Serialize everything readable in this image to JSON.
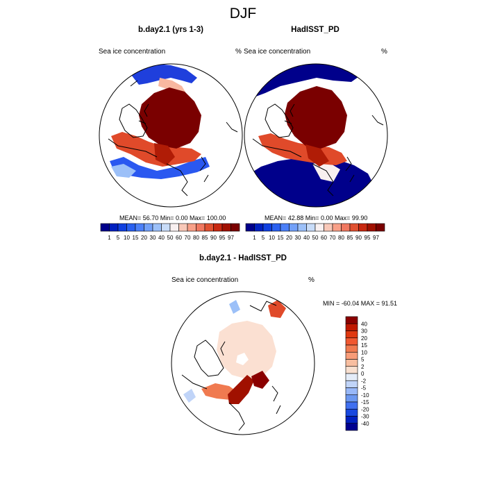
{
  "figure": {
    "title": "DJF",
    "left_panel": {
      "title": "b.day2.1 (yrs 1-3)",
      "left_label": "Sea ice concentration",
      "right_label": "%",
      "stats": "MEAN=  56.70  Min=   0.00  Max= 100.00"
    },
    "right_panel": {
      "title": "HadISST_PD",
      "left_label": "Sea ice concentration",
      "right_label": "%",
      "stats": "MEAN=  42.88  Min=   0.00  Max=  99.90"
    },
    "diff_panel": {
      "title": "b.day2.1 - HadISST_PD",
      "left_label": "Sea ice concentration",
      "right_label": "%",
      "stats": "MIN = -60.04 MAX =  91.51"
    }
  },
  "chart_data": [
    {
      "type": "heatmap",
      "projection": "north-polar-stereographic",
      "title": "b.day2.1 (yrs 1-3)",
      "variable": "Sea ice concentration",
      "units": "%",
      "mean": 56.7,
      "min": 0.0,
      "max": 100.0,
      "colorbar": {
        "orientation": "horizontal",
        "levels": [
          1,
          5,
          10,
          15,
          20,
          30,
          40,
          50,
          60,
          70,
          80,
          85,
          90,
          95,
          97
        ],
        "colors": [
          "#00008b",
          "#0020c0",
          "#1040e0",
          "#2a60f0",
          "#4c80f8",
          "#72a0f8",
          "#9cc0f8",
          "#c8dcf8",
          "#f8f0f0",
          "#f8c8b8",
          "#f8a088",
          "#f07860",
          "#e05030",
          "#c82810",
          "#a01000",
          "#7a0000"
        ]
      }
    },
    {
      "type": "heatmap",
      "projection": "north-polar-stereographic",
      "title": "HadISST_PD",
      "variable": "Sea ice concentration",
      "units": "%",
      "mean": 42.88,
      "min": 0.0,
      "max": 99.9,
      "colorbar": {
        "orientation": "horizontal",
        "levels": [
          1,
          5,
          10,
          15,
          20,
          30,
          40,
          50,
          60,
          70,
          80,
          85,
          90,
          95,
          97
        ],
        "colors": [
          "#00008b",
          "#0020c0",
          "#1040e0",
          "#2a60f0",
          "#4c80f8",
          "#72a0f8",
          "#9cc0f8",
          "#c8dcf8",
          "#f8f0f0",
          "#f8c8b8",
          "#f8a088",
          "#f07860",
          "#e05030",
          "#c82810",
          "#a01000",
          "#7a0000"
        ]
      }
    },
    {
      "type": "heatmap",
      "projection": "north-polar-stereographic",
      "title": "b.day2.1 - HadISST_PD",
      "variable": "Sea ice concentration",
      "units": "%",
      "min": -60.04,
      "max": 91.51,
      "colorbar": {
        "orientation": "vertical",
        "levels": [
          40,
          30,
          20,
          15,
          10,
          5,
          2,
          0,
          -2,
          -5,
          -10,
          -15,
          -20,
          -30,
          -40
        ],
        "colors": [
          "#8b0000",
          "#c01800",
          "#e03810",
          "#f05830",
          "#f07a50",
          "#f89c78",
          "#f8bea0",
          "#f8e0d0",
          "#e4ecf8",
          "#c0d4f8",
          "#98b8f8",
          "#6c98f0",
          "#4070f0",
          "#1848e0",
          "#0020c0",
          "#000090"
        ]
      }
    }
  ]
}
